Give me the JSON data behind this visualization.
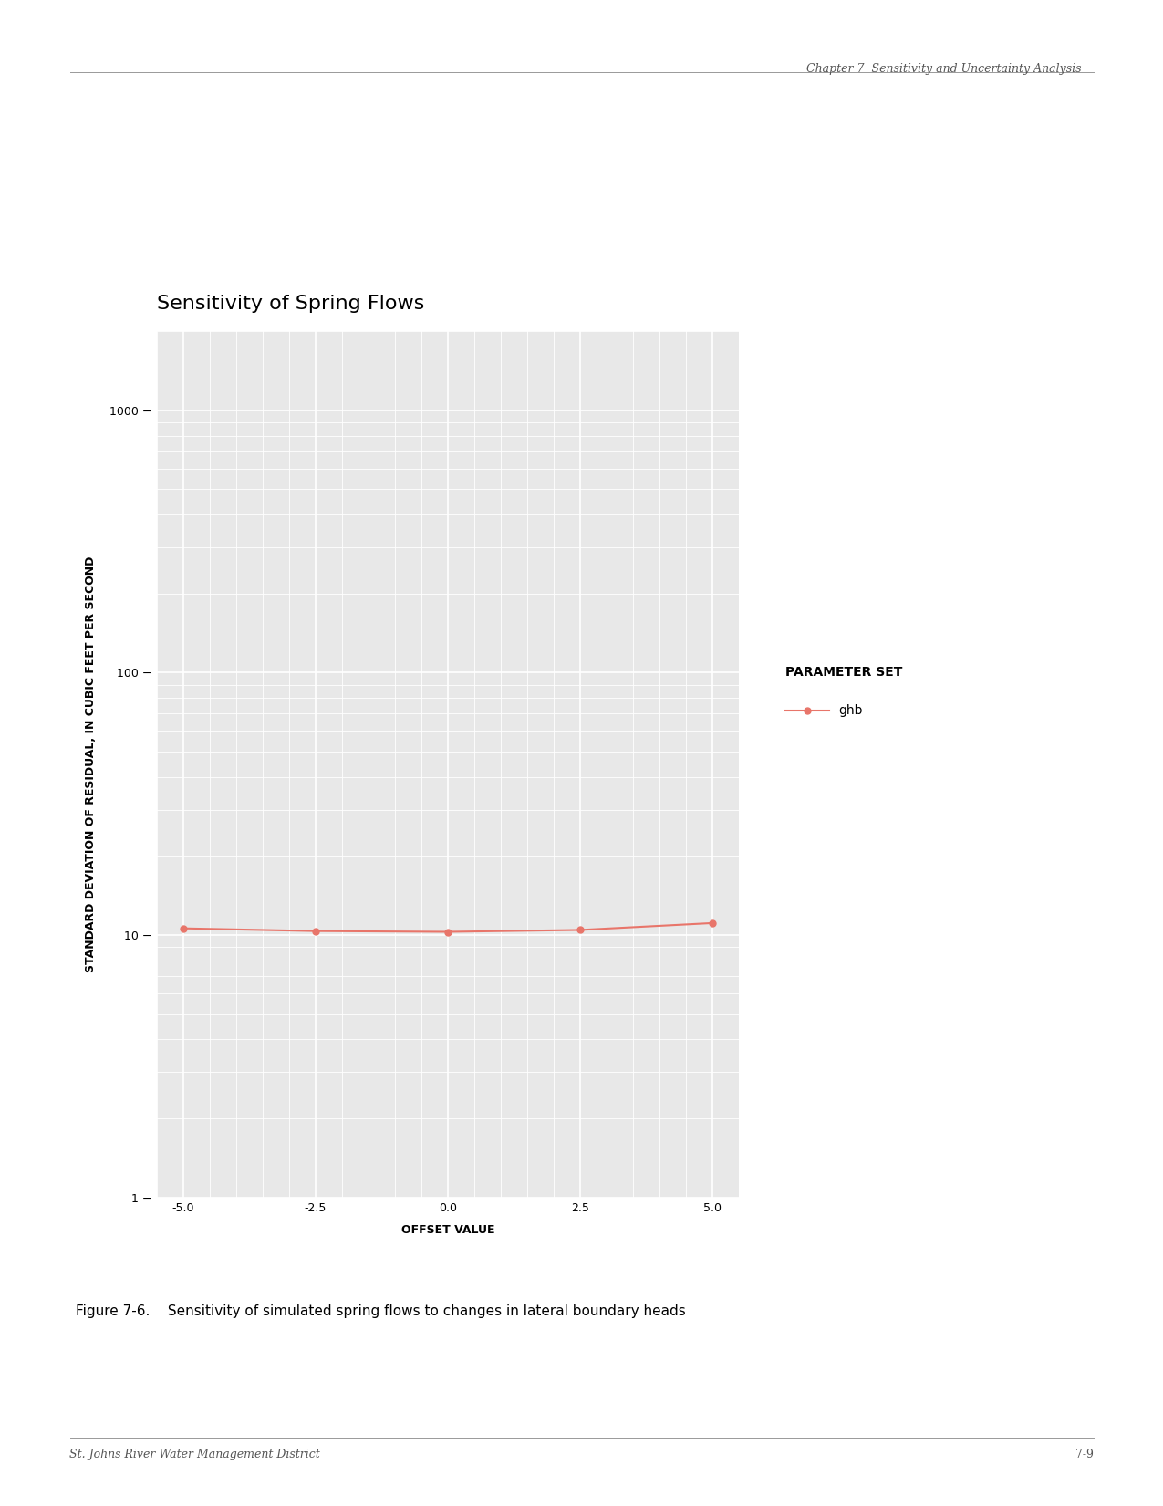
{
  "title": "Sensitivity of Spring Flows",
  "xlabel": "OFFSET VALUE",
  "ylabel": "STANDARD DEVIATION OF RESIDUAL, IN CUBIC FEET PER SECOND",
  "x_values": [
    -5.0,
    -2.5,
    0.0,
    2.5,
    5.0
  ],
  "y_values": [
    10.6,
    10.35,
    10.28,
    10.45,
    11.1
  ],
  "line_color": "#E8756A",
  "marker_color": "#E8756A",
  "marker_style": "o",
  "marker_size": 5,
  "line_width": 1.5,
  "background_color": "#E8E8E8",
  "grid_color": "#FFFFFF",
  "xlim": [
    -5.5,
    5.5
  ],
  "ylim_log": [
    1,
    2000
  ],
  "yticks": [
    1,
    10,
    100,
    1000
  ],
  "xticks": [
    -5.0,
    -2.5,
    0.0,
    2.5,
    5.0
  ],
  "legend_label": "ghb",
  "legend_title": "PARAMETER SET",
  "title_fontsize": 16,
  "axis_label_fontsize": 9,
  "tick_fontsize": 9,
  "legend_fontsize": 10,
  "page_header": "Chapter 7  Sensitivity and Uncertainty Analysis",
  "page_footer_left": "St. Johns River Water Management District",
  "page_footer_right": "7-9",
  "figure_caption": "Figure 7-6.    Sensitivity of simulated spring flows to changes in lateral boundary heads"
}
